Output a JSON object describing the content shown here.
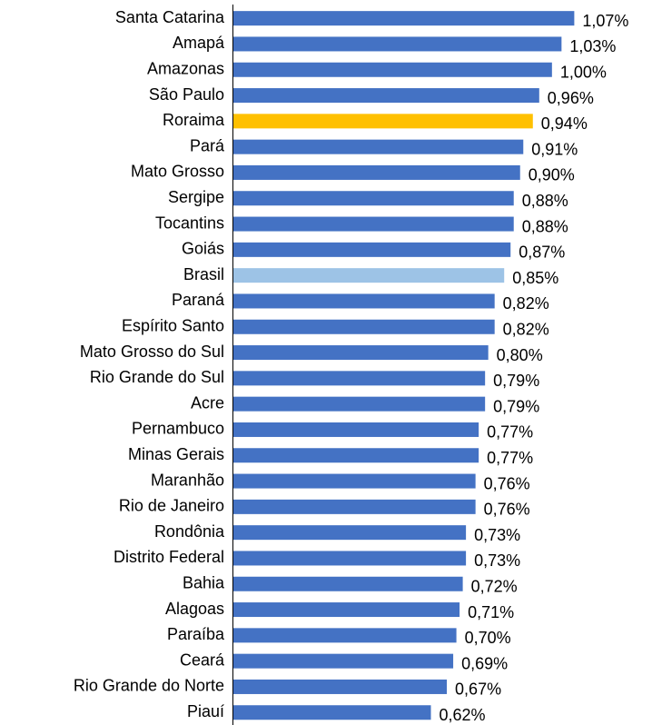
{
  "chart_data": {
    "type": "barh",
    "categories": [
      "Santa Catarina",
      "Amapá",
      "Amazonas",
      "São Paulo",
      "Roraima",
      "Pará",
      "Mato Grosso",
      "Sergipe",
      "Tocantins",
      "Goiás",
      "Brasil",
      "Paraná",
      "Espírito Santo",
      "Mato Grosso do Sul",
      "Rio Grande do Sul",
      "Acre",
      "Pernambuco",
      "Minas Gerais",
      "Maranhão",
      "Rio de Janeiro",
      "Rondônia",
      "Distrito Federal",
      "Bahia",
      "Alagoas",
      "Paraíba",
      "Ceará",
      "Rio Grande do Norte",
      "Piauí"
    ],
    "values": [
      1.07,
      1.03,
      1.0,
      0.96,
      0.94,
      0.91,
      0.9,
      0.88,
      0.88,
      0.87,
      0.85,
      0.82,
      0.82,
      0.8,
      0.79,
      0.79,
      0.77,
      0.77,
      0.76,
      0.76,
      0.73,
      0.73,
      0.72,
      0.71,
      0.7,
      0.69,
      0.67,
      0.62
    ],
    "value_labels": [
      "1,07%",
      "1,03%",
      "1,00%",
      "0,96%",
      "0,94%",
      "0,91%",
      "0,90%",
      "0,88%",
      "0,88%",
      "0,87%",
      "0,85%",
      "0,82%",
      "0,82%",
      "0,80%",
      "0,79%",
      "0,79%",
      "0,77%",
      "0,77%",
      "0,76%",
      "0,76%",
      "0,73%",
      "0,73%",
      "0,72%",
      "0,71%",
      "0,70%",
      "0,69%",
      "0,67%",
      "0,62%"
    ],
    "colors": [
      "#4472c4",
      "#4472c4",
      "#4472c4",
      "#4472c4",
      "#ffc000",
      "#4472c4",
      "#4472c4",
      "#4472c4",
      "#4472c4",
      "#4472c4",
      "#9dc3e6",
      "#4472c4",
      "#4472c4",
      "#4472c4",
      "#4472c4",
      "#4472c4",
      "#4472c4",
      "#4472c4",
      "#4472c4",
      "#4472c4",
      "#4472c4",
      "#4472c4",
      "#4472c4",
      "#4472c4",
      "#4472c4",
      "#4472c4",
      "#4472c4",
      "#4472c4"
    ],
    "xlim": [
      0,
      1.2
    ]
  }
}
